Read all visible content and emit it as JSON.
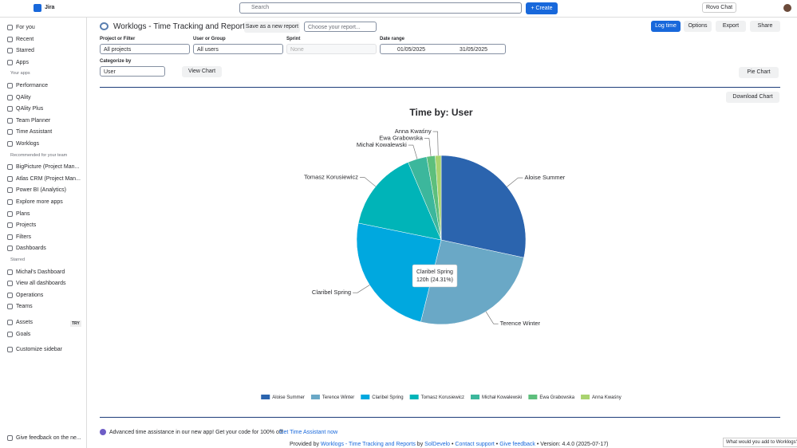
{
  "topbar": {
    "app": "Jira",
    "search": "Search",
    "create": "+ Create",
    "rovo": "Rovo Chat"
  },
  "sidebar": {
    "main": [
      "For you",
      "Recent",
      "Starred",
      "Apps"
    ],
    "your_apps_heading": "Your apps",
    "your_apps": [
      "Performance",
      "QAlity",
      "QAlity Plus",
      "Team Planner",
      "Time Assistant",
      "Worklogs"
    ],
    "recommended_heading": "Recommended for your team",
    "recommended": [
      "BigPicture (Project Man...",
      "Atlas CRM (Project Man...",
      "Power BI (Analytics)",
      "Explore more apps"
    ],
    "more": [
      "Plans",
      "Projects",
      "Filters",
      "Dashboards"
    ],
    "starred_heading": "Starred",
    "starred": [
      "Michał's Dashboard",
      "View all dashboards"
    ],
    "rest": [
      "Operations",
      "Teams"
    ],
    "assets": "Assets",
    "try": "TRY",
    "goals": "Goals",
    "customize": "Customize sidebar",
    "feedback": "Give feedback on the ne..."
  },
  "header": {
    "title": "Worklogs - Time Tracking and Reports",
    "save": "Save as a new report",
    "choose": "Choose your report...",
    "log_time": "Log time",
    "options": "Options",
    "export": "Export",
    "share": "Share"
  },
  "filters": {
    "project_label": "Project or Filter",
    "project": "All projects",
    "user_label": "User or Group",
    "user": "All users",
    "sprint_label": "Sprint",
    "sprint": "None",
    "date_label": "Date range",
    "date_from": "01/05/2025",
    "date_to": "31/05/2025",
    "categorize_label": "Categorize by",
    "categorize": "User",
    "view_chart": "View Chart",
    "chart_type": "Pie Chart",
    "download": "Download Chart"
  },
  "chart_data": {
    "type": "pie",
    "title": "Time by: User",
    "categories": [
      "Aloise Summer",
      "Terence Winter",
      "Claribel Spring",
      "Tomasz Korusiewicz",
      "Michał Kowalewski",
      "Ewa Grabowska",
      "Anna Kwaśny"
    ],
    "values": [
      140,
      126,
      120,
      76,
      18,
      8,
      5.6
    ],
    "colors": [
      "#2b64ae",
      "#6aa8c6",
      "#00a8df",
      "#00b4b8",
      "#3cb79c",
      "#5dbf7c",
      "#a9d36f"
    ],
    "tooltip": "120h (24.31%)"
  },
  "footer": {
    "promo": "Advanced time assistance in our new app! Get your code for 100% off!",
    "promo_link": "Get Time Assistant now",
    "provided": "Provided by",
    "product": "Worklogs - Time Tracking and Reports",
    "by": "by",
    "vendor": "SolDevelo",
    "support": "Contact support",
    "feedback": "Give feedback",
    "version": "Version: 4.4.0 (2025-07-17)",
    "survey": "What would you add to Worklogs?"
  }
}
